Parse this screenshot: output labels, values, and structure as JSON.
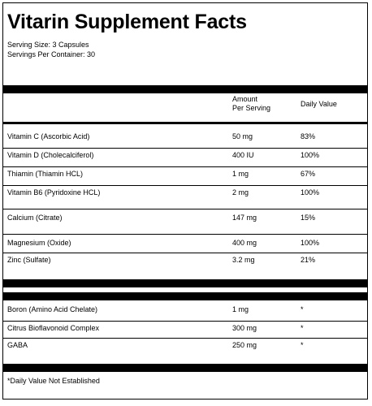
{
  "title": "Vitarin Supplement Facts",
  "serving_size": "Serving Size: 3 Capsules",
  "servings_per_container": "Servings Per Container: 30",
  "headers": {
    "amount_line1": "Amount",
    "amount_line2": "Per Serving",
    "daily_value": "Daily Value"
  },
  "nutrients": [
    {
      "name": "Vitamin C (Ascorbic Acid)",
      "amount": "50 mg",
      "dv": "83%"
    },
    {
      "name": "Vitamin D (Cholecalciferol)",
      "amount": "400 IU",
      "dv": "100%"
    },
    {
      "name": "Thiamin (Thiamin HCL)",
      "amount": "1 mg",
      "dv": "67%"
    },
    {
      "name": "Vitamin B6 (Pyridoxine HCL)",
      "amount": "2 mg",
      "dv": "100%"
    },
    {
      "name": "Calcium (Citrate)",
      "amount": "147 mg",
      "dv": "15%"
    },
    {
      "name": "Magnesium (Oxide)",
      "amount": "400 mg",
      "dv": "100%"
    },
    {
      "name": "Zinc (Sulfate)",
      "amount": "3.2 mg",
      "dv": "21%"
    }
  ],
  "other_ingredients": [
    {
      "name": "Boron (Amino Acid Chelate)",
      "amount": "1 mg",
      "dv": "*"
    },
    {
      "name": "Citrus Bioflavonoid Complex",
      "amount": "300 mg",
      "dv": "*"
    },
    {
      "name": "GABA",
      "amount": "250 mg",
      "dv": "*"
    }
  ],
  "footnote": "*Daily Value Not Established"
}
